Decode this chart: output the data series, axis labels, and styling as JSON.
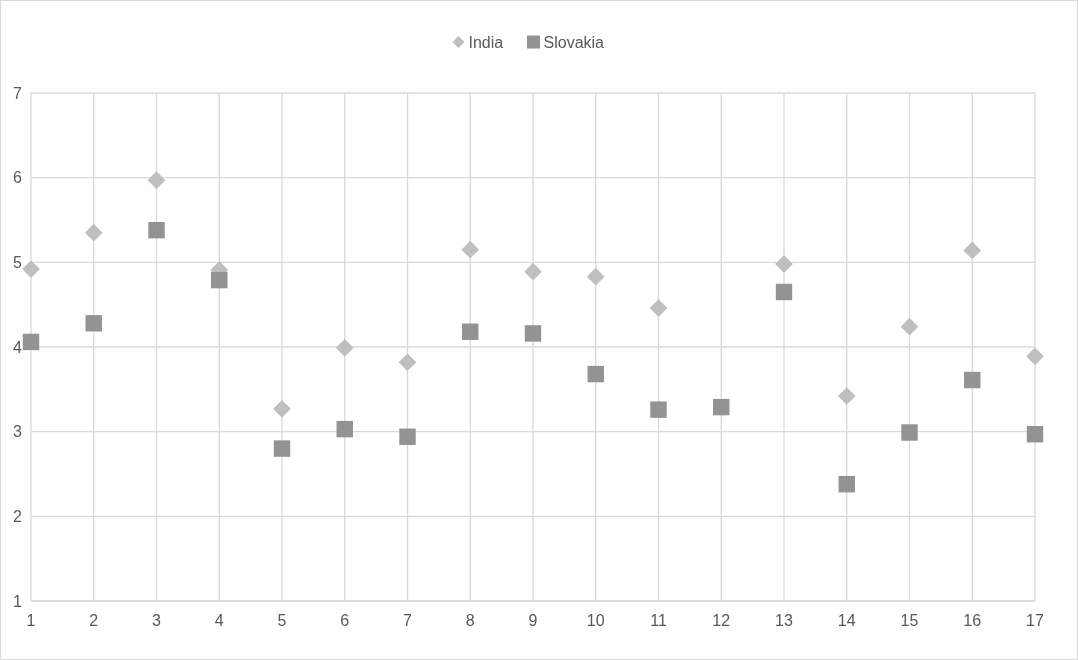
{
  "chart_data": {
    "type": "scatter",
    "x": [
      1,
      2,
      3,
      4,
      5,
      6,
      7,
      8,
      9,
      10,
      11,
      12,
      13,
      14,
      15,
      16,
      17
    ],
    "series": [
      {
        "name": "India",
        "color": "#bfbfbf",
        "marker": "diamond",
        "values": [
          4.92,
          5.35,
          5.97,
          4.91,
          3.27,
          3.99,
          3.82,
          5.15,
          4.89,
          4.83,
          4.46,
          null,
          4.98,
          3.42,
          4.24,
          5.14,
          3.89
        ]
      },
      {
        "name": "Slovakia",
        "color": "#939393",
        "marker": "square",
        "values": [
          4.06,
          4.28,
          5.38,
          4.79,
          2.8,
          3.03,
          2.94,
          4.18,
          4.16,
          3.68,
          3.26,
          3.29,
          4.65,
          2.38,
          2.99,
          3.61,
          2.97
        ]
      }
    ],
    "xlim": [
      1,
      17
    ],
    "xticks": [
      1,
      2,
      3,
      4,
      5,
      6,
      7,
      8,
      9,
      10,
      11,
      12,
      13,
      14,
      15,
      16,
      17
    ],
    "ylim": [
      1,
      7
    ],
    "yticks": [
      1,
      2,
      3,
      4,
      5,
      6,
      7
    ],
    "grid": true,
    "legend": "top"
  }
}
